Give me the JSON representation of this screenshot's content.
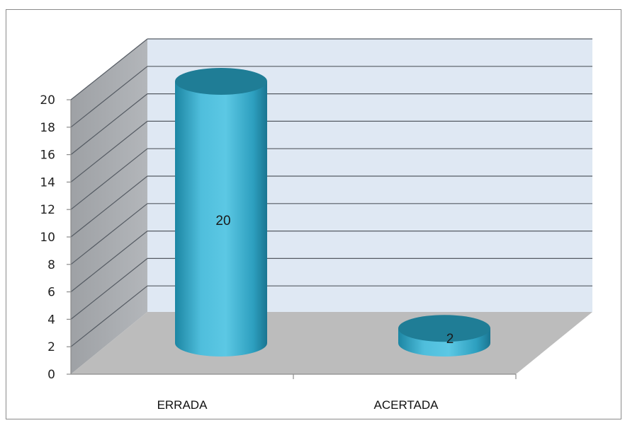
{
  "chart_data": {
    "type": "bar",
    "style": "3d-cylinder",
    "categories": [
      "ERRADA",
      "ACERTADA"
    ],
    "values": [
      20,
      2
    ],
    "data_labels": [
      "20",
      "2"
    ],
    "y_ticks": [
      "0",
      "2",
      "4",
      "6",
      "8",
      "10",
      "12",
      "14",
      "16",
      "18",
      "20"
    ],
    "ylim": [
      0,
      20
    ],
    "grid": true,
    "legend": "none",
    "colors": {
      "bar_light": "#5cc3df",
      "bar_mid": "#2fa4c4",
      "bar_dark": "#17708a",
      "bar_top": "#1f7d96",
      "back_wall": "#dfe8f3",
      "side_wall": "#a7aaae",
      "floor": "#bcbcbc",
      "grid": "#555b63"
    }
  }
}
